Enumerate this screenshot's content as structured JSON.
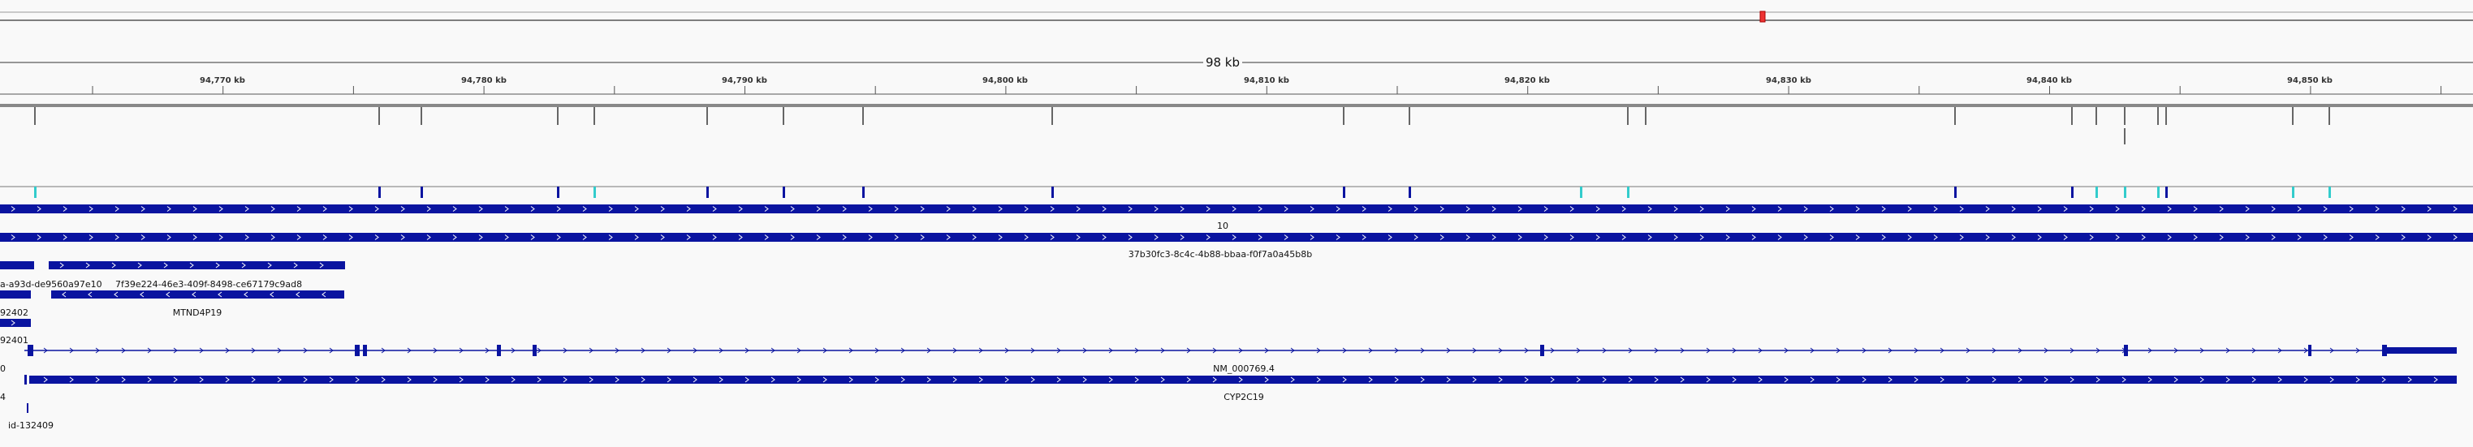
{
  "ruler": {
    "span_label": "98 kb",
    "tick_labels": [
      "94,770 kb",
      "94,780 kb",
      "94,790 kb",
      "94,800 kb",
      "94,810 kb",
      "94,820 kb",
      "94,830 kb",
      "94,840 kb",
      "94,850 kb"
    ]
  },
  "tracks": {
    "variant_feature_count": 24,
    "clinvar_label": "10",
    "gene_label": "37b30fc3-8c4c-4b88-bbaa-f0f7a0a45b8b",
    "left_truncated_label": "a-a93d-de9560a97e10",
    "pseudogene_id_label": "7f39e224-46e3-409f-8498-ce67179c9ad8",
    "pseudogene_name_label": "MTND4P19",
    "small_label_1": "92402",
    "small_label_2": "92401",
    "transcript_label": "NM_000769.4",
    "transcript_gene_label": "CYP2C19",
    "edge_label_1": "0",
    "edge_label_2": "4",
    "bottom_label": "id-132409"
  },
  "colors": {
    "feature_blue": "#0a14a0",
    "cyan": "#33cccc",
    "grey_tick": "#666666",
    "region_red": "#dd2222"
  }
}
